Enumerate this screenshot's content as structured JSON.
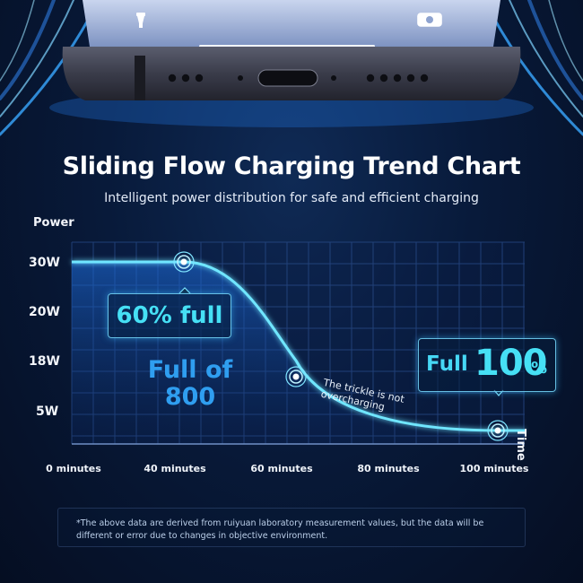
{
  "header": {
    "title": "Sliding Flow Charging Trend Chart",
    "subtitle": "Intelligent power distribution for safe and efficient charging"
  },
  "chart_data": {
    "type": "line",
    "ylabel": "Power",
    "xlabel": "Time",
    "y_tick_labels": [
      "30W",
      "20W",
      "18W",
      "5W"
    ],
    "x_tick_labels": [
      "0 minutes",
      "40 minutes",
      "60 minutes",
      "80 minutes",
      "100 minutes"
    ],
    "series": [
      {
        "points": [
          {
            "x": "0 minutes",
            "y": "30W"
          },
          {
            "x": "40 minutes",
            "y": "30W"
          },
          {
            "x": "60 minutes",
            "y": "18W"
          },
          {
            "x": "100 minutes",
            "y": "5W"
          }
        ]
      }
    ],
    "annotations": {
      "callout_60": "60% full",
      "full_800_line1": "Full of",
      "full_800_line2": "800",
      "trickle_line1": "The trickle is not",
      "trickle_line2": "overcharging",
      "callout_100_prefix": "Full",
      "callout_100_value": "100",
      "callout_100_unit": "%"
    },
    "grid": true,
    "accent_color": "#46e0f5"
  },
  "footer": {
    "note": "*The above data are derived from ruiyuan laboratory measurement values, but the data will be different or error due to changes in objective environment."
  }
}
